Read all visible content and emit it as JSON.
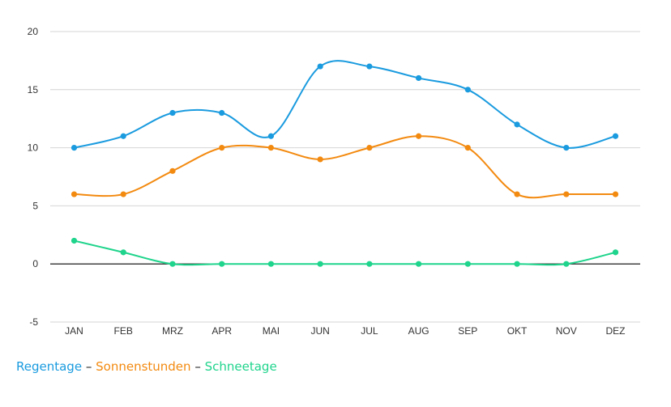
{
  "chart_data": {
    "type": "line",
    "title": "",
    "xlabel": "",
    "ylabel": "",
    "categories": [
      "JAN",
      "FEB",
      "MRZ",
      "APR",
      "MAI",
      "JUN",
      "JUL",
      "AUG",
      "SEP",
      "OKT",
      "NOV",
      "DEZ"
    ],
    "ylim": [
      -5,
      20
    ],
    "yticks": [
      -5,
      0,
      5,
      10,
      15,
      20
    ],
    "grid": true,
    "legend_position": "bottom-left",
    "series": [
      {
        "name": "Regentage",
        "color": "#1a9bdf",
        "values": [
          10,
          11,
          13,
          13,
          11,
          17,
          17,
          16,
          15,
          12,
          10,
          11
        ]
      },
      {
        "name": "Sonnenstunden",
        "color": "#f38a10",
        "values": [
          6,
          6,
          8,
          10,
          10,
          9,
          10,
          11,
          10,
          6,
          6,
          6
        ]
      },
      {
        "name": "Schneetage",
        "color": "#1fd48c",
        "values": [
          2,
          1,
          0,
          0,
          0,
          0,
          0,
          0,
          0,
          0,
          0,
          1
        ]
      }
    ]
  },
  "legend": {
    "items": [
      "Regentage",
      "Sonnenstunden",
      "Schneetage"
    ],
    "separator": "–"
  }
}
